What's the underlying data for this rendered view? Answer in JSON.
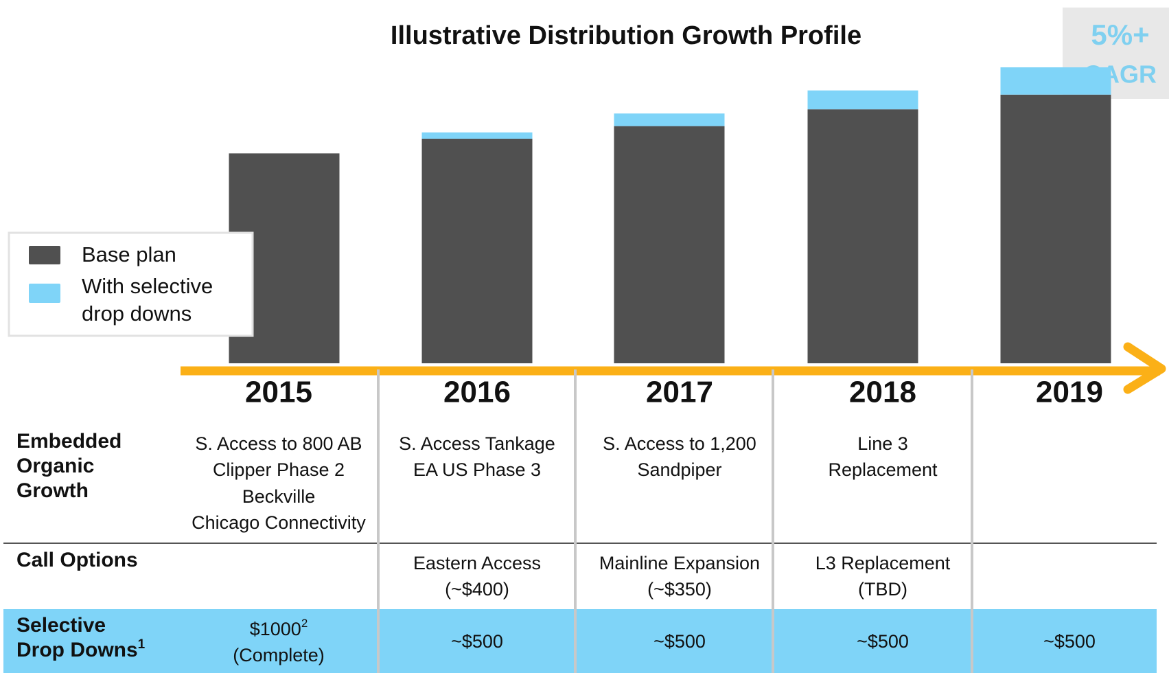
{
  "chart_data": {
    "type": "stacked-bar",
    "title": "Illustrative Distribution Growth Profile",
    "badge": [
      "5%+",
      "CAGR"
    ],
    "categories": [
      "2015",
      "2016",
      "2017",
      "2018",
      "2019"
    ],
    "series": [
      {
        "name": "Base plan",
        "color": "#505050",
        "values": [
          100,
          107,
          113,
          121,
          128
        ]
      },
      {
        "name": "With selective drop downs",
        "color": "#7fd4f8",
        "values": [
          0,
          3,
          6,
          9,
          13
        ]
      }
    ],
    "ylim": [
      0,
      142
    ],
    "legend": "left"
  },
  "table": {
    "rows": [
      {
        "header": [
          "Embedded",
          "Organic",
          "Growth"
        ],
        "cells": [
          [
            "S. Access to 800 AB",
            "Clipper Phase 2",
            "Beckville",
            "Chicago Connectivity"
          ],
          [
            "S. Access Tankage",
            "EA US Phase 3"
          ],
          [
            "S. Access to 1,200",
            "Sandpiper"
          ],
          [
            "Line 3",
            "Replacement"
          ],
          []
        ]
      },
      {
        "header": [
          "Call Options"
        ],
        "cells": [
          [],
          [
            "Eastern Access",
            "(~$400)"
          ],
          [
            "Mainline Expansion",
            "(~$350)"
          ],
          [
            "L3 Replacement",
            "(TBD)"
          ],
          []
        ]
      },
      {
        "header": [
          "Selective",
          "Drop Downs"
        ],
        "header_sup": "1",
        "cells": [
          [
            "$1000",
            "(Complete)"
          ],
          [
            "~$500"
          ],
          [
            "~$500"
          ],
          [
            "~$500"
          ],
          [
            "~$500"
          ]
        ],
        "first_sup": "2"
      }
    ]
  }
}
